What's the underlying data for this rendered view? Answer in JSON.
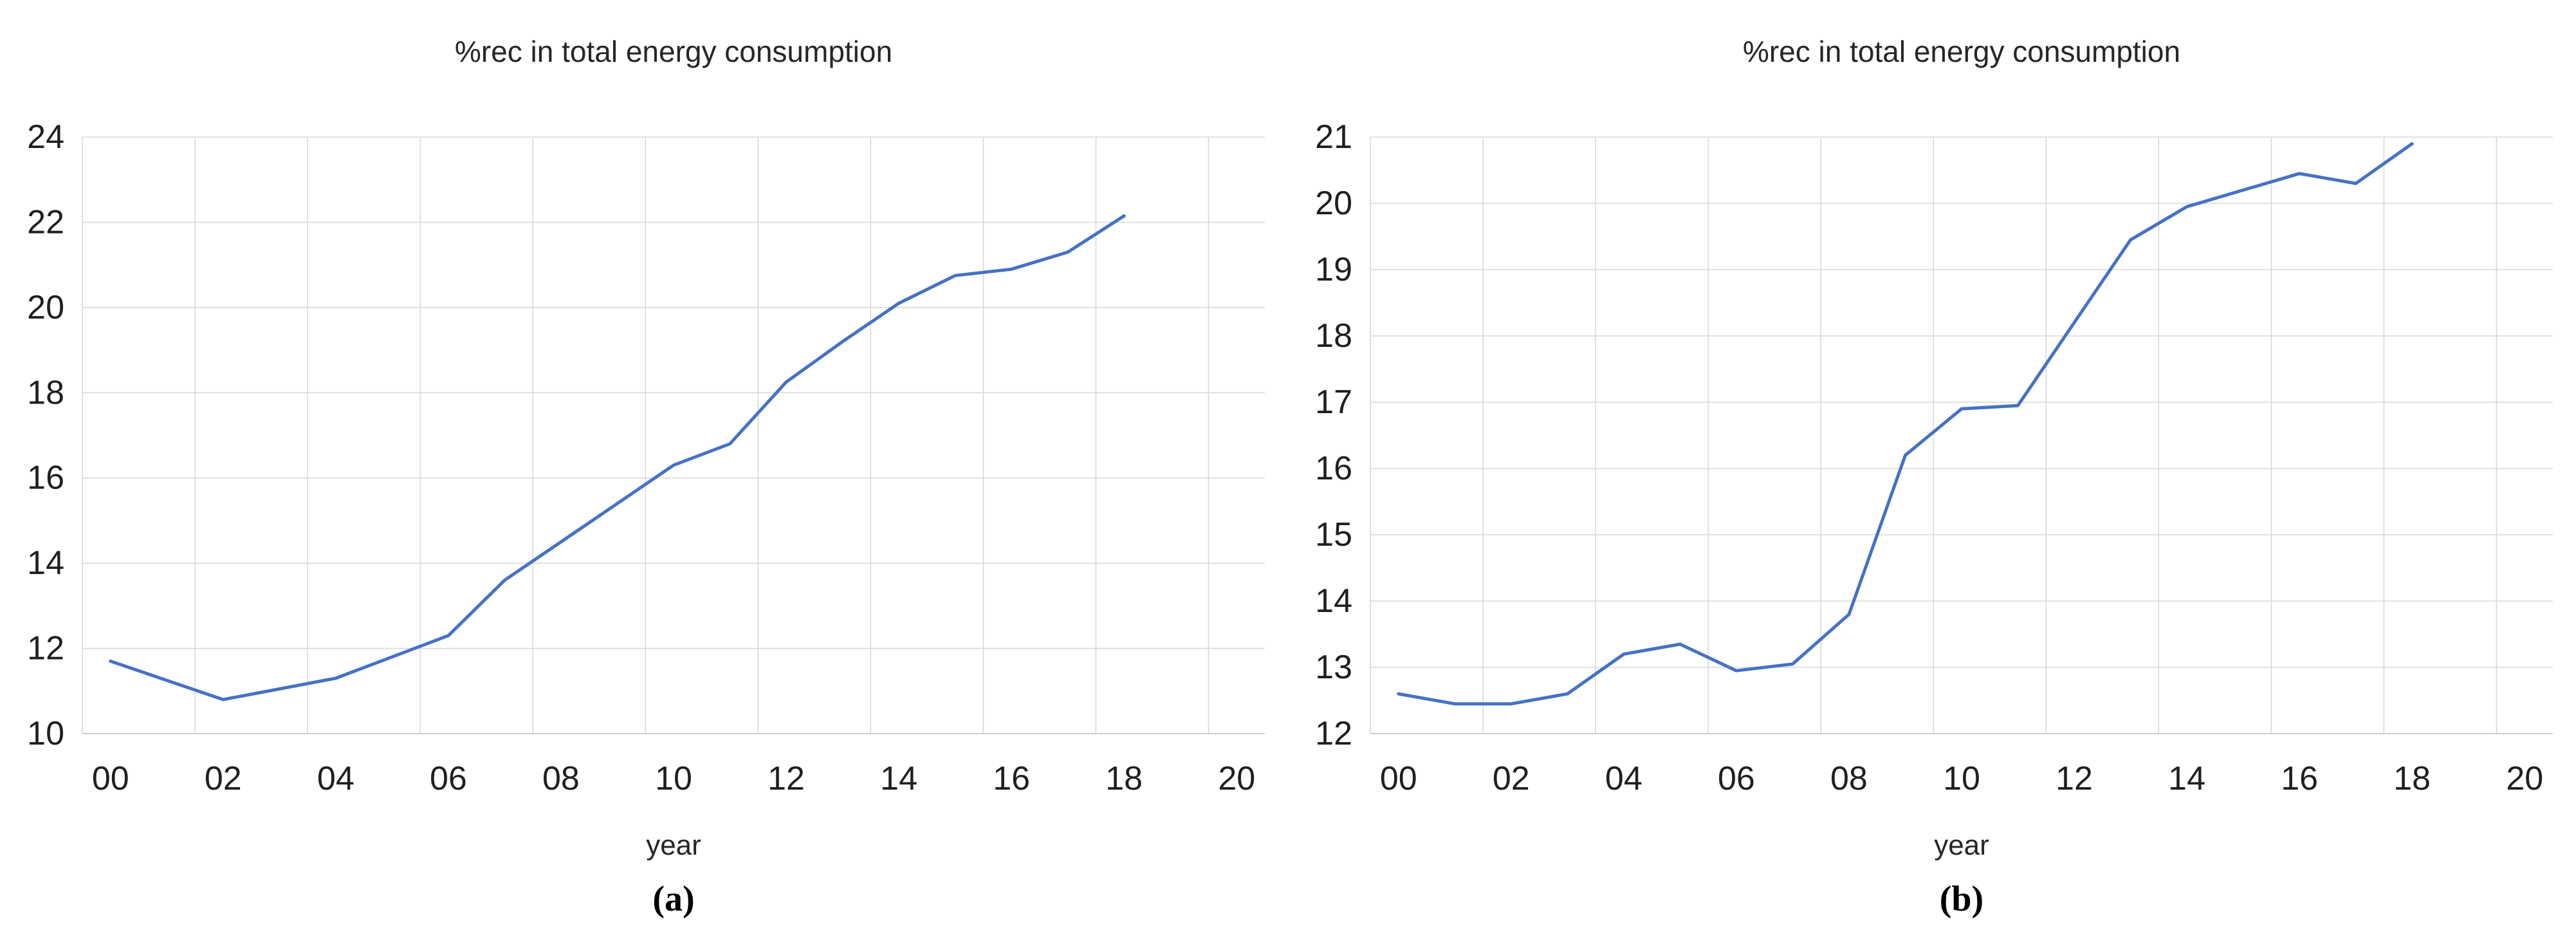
{
  "style": {
    "line_color": "#4472C4",
    "grid_color": "#D9D9D9",
    "axis_line_color": "#BFBFBF",
    "tick_color": "#1f1f1f",
    "title_color": "#262626"
  },
  "chart_data": [
    {
      "id": "a",
      "type": "line",
      "title": "%rec in total energy consumption",
      "xlabel": "year",
      "caption": "(a)",
      "legend": "none",
      "grid": true,
      "x": [
        "00",
        "01",
        "02",
        "03",
        "04",
        "05",
        "06",
        "07",
        "08",
        "09",
        "10",
        "11",
        "12",
        "13",
        "14",
        "15",
        "16",
        "17",
        "18"
      ],
      "values": [
        11.7,
        11.25,
        10.8,
        11.05,
        11.3,
        11.8,
        12.3,
        13.6,
        14.5,
        15.4,
        16.3,
        16.8,
        18.25,
        19.2,
        20.1,
        20.75,
        20.9,
        21.3,
        22.15
      ],
      "x_tick_labels": [
        "00",
        "02",
        "04",
        "06",
        "08",
        "10",
        "12",
        "14",
        "16",
        "18",
        "20"
      ],
      "num_categories": 21,
      "y_ticks": [
        10,
        12,
        14,
        16,
        18,
        20,
        22,
        24
      ],
      "ylim": [
        10,
        24
      ]
    },
    {
      "id": "b",
      "type": "line",
      "title": "%rec in total energy consumption",
      "xlabel": "year",
      "caption": "(b)",
      "legend": "none",
      "grid": true,
      "x": [
        "00",
        "01",
        "02",
        "03",
        "04",
        "05",
        "06",
        "07",
        "08",
        "09",
        "10",
        "11",
        "12",
        "13",
        "14",
        "15",
        "16",
        "17",
        "18"
      ],
      "values": [
        12.6,
        12.45,
        12.45,
        12.6,
        13.2,
        13.35,
        12.95,
        13.05,
        13.8,
        16.2,
        16.9,
        16.95,
        18.2,
        19.45,
        19.95,
        20.2,
        20.45,
        20.3,
        20.9
      ],
      "x_tick_labels": [
        "00",
        "02",
        "04",
        "06",
        "08",
        "10",
        "12",
        "14",
        "16",
        "18",
        "20"
      ],
      "num_categories": 21,
      "y_ticks": [
        12,
        13,
        14,
        15,
        16,
        17,
        18,
        19,
        20,
        21
      ],
      "ylim": [
        12,
        21
      ]
    }
  ]
}
